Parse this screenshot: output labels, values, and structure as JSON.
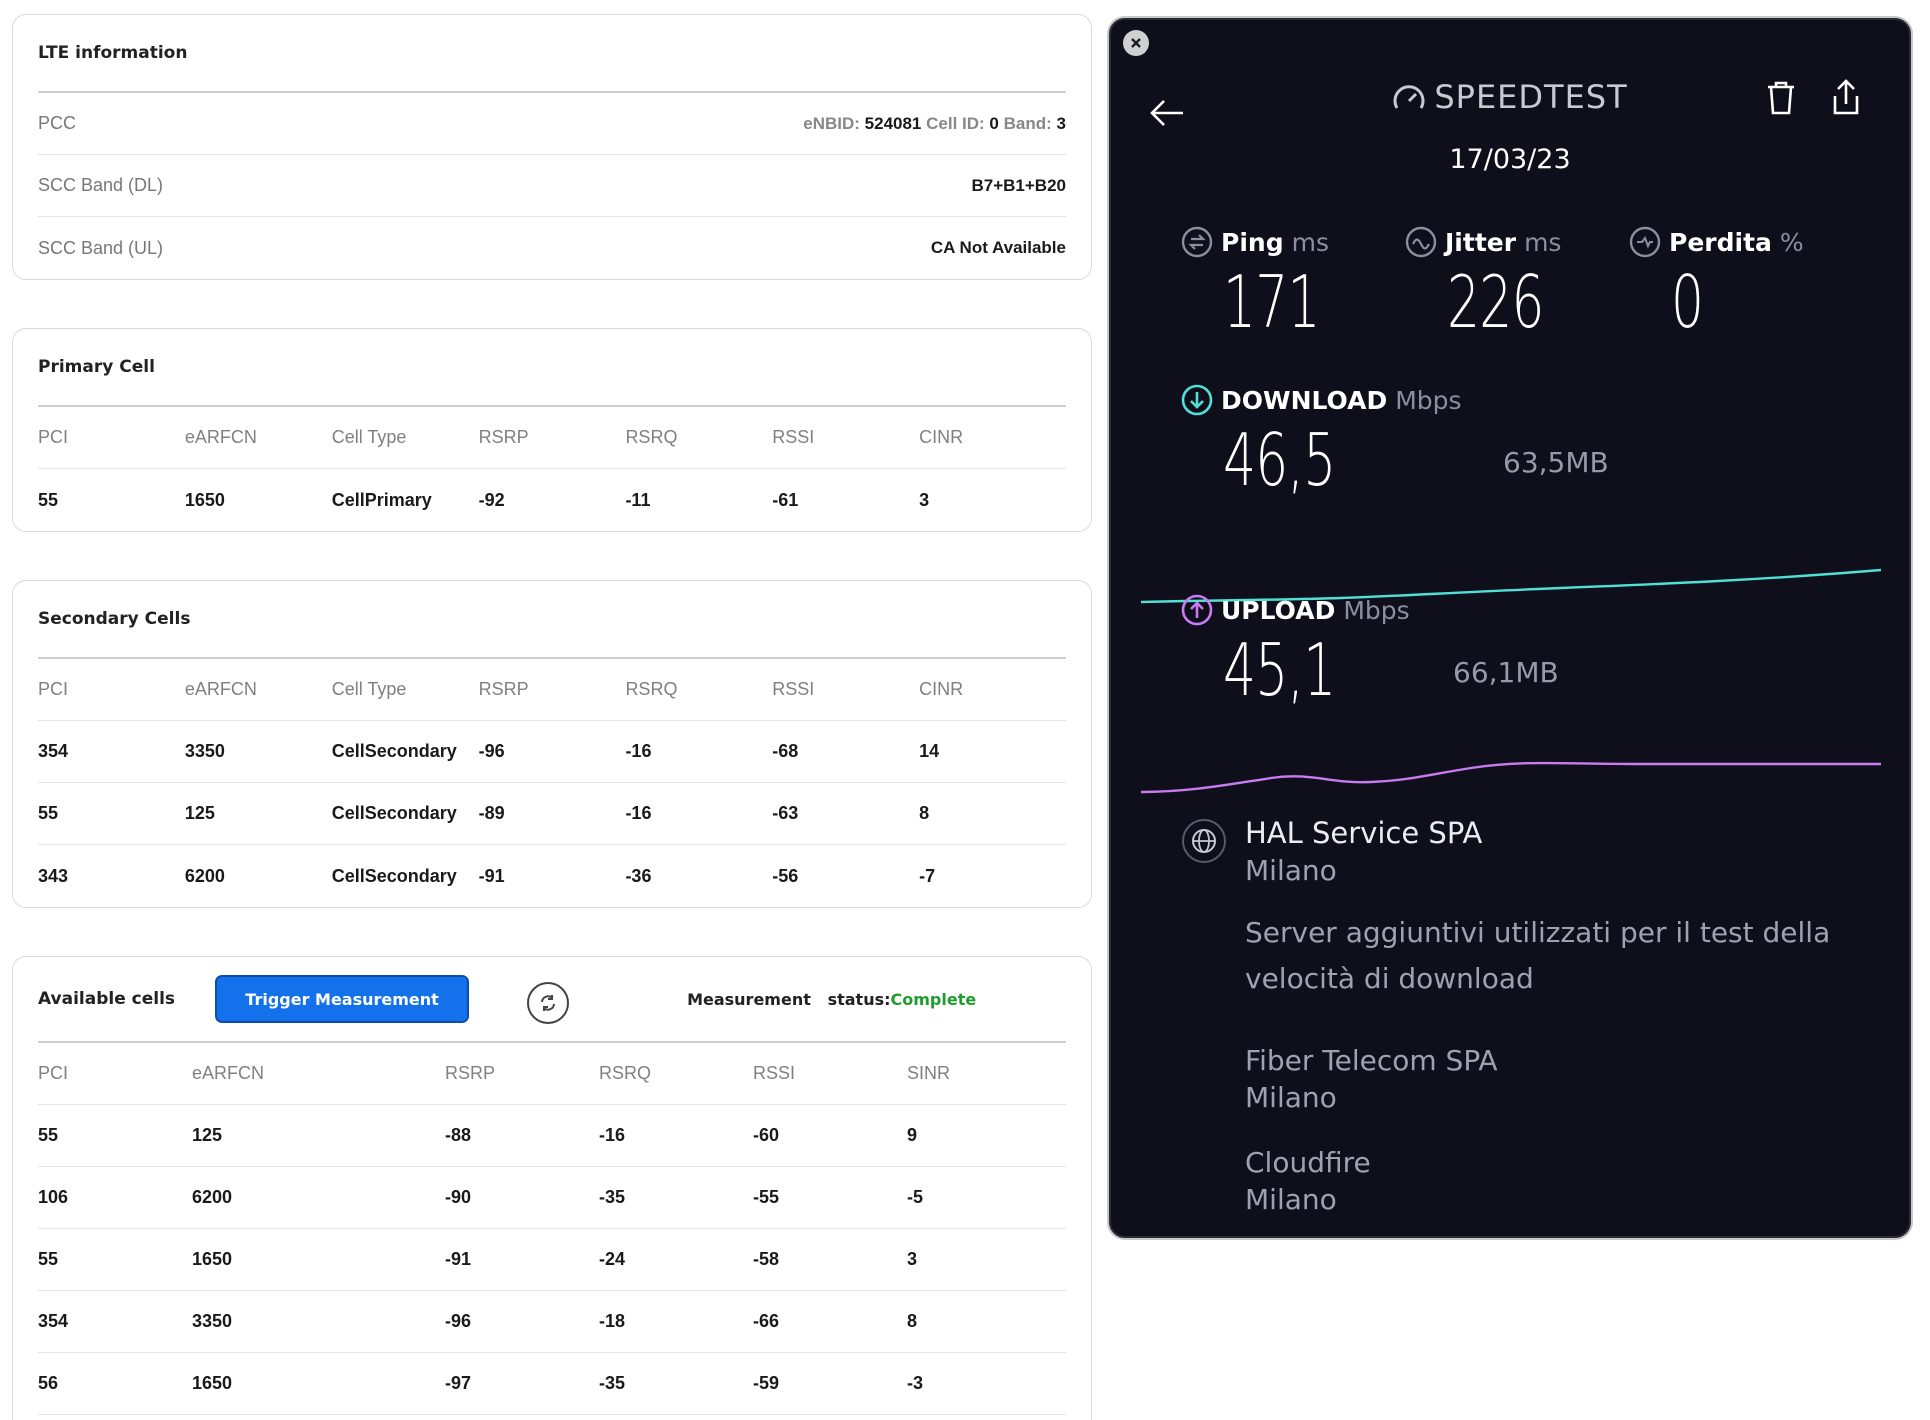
{
  "lte": {
    "title": "LTE information",
    "rows": [
      {
        "label": "PCC"
      },
      {
        "label": "SCC Band (DL)",
        "value": "B7+B1+B20"
      },
      {
        "label": "SCC Band (UL)",
        "value": "CA Not Available"
      }
    ],
    "pcc": {
      "enbid_label": "eNBID:",
      "enbid": "524081",
      "cellid_label": "Cell ID:",
      "cellid": "0",
      "band_label": "Band:",
      "band": "3"
    }
  },
  "primary": {
    "title": "Primary Cell",
    "headers": [
      "PCI",
      "eARFCN",
      "Cell Type",
      "RSRP",
      "RSRQ",
      "RSSI",
      "CINR"
    ],
    "rows": [
      [
        "55",
        "1650",
        "CellPrimary",
        "-92",
        "-11",
        "-61",
        "3"
      ]
    ]
  },
  "secondary": {
    "title": "Secondary Cells",
    "headers": [
      "PCI",
      "eARFCN",
      "Cell Type",
      "RSRP",
      "RSRQ",
      "RSSI",
      "CINR"
    ],
    "rows": [
      [
        "354",
        "3350",
        "CellSecondary",
        "-96",
        "-16",
        "-68",
        "14"
      ],
      [
        "55",
        "125",
        "CellSecondary",
        "-89",
        "-16",
        "-63",
        "8"
      ],
      [
        "343",
        "6200",
        "CellSecondary",
        "-91",
        "-36",
        "-56",
        "-7"
      ]
    ]
  },
  "available": {
    "title": "Available cells",
    "trigger_label": "Trigger Measurement",
    "measurement_label": "Measurement",
    "status_label": "status:",
    "status_value": "Complete",
    "headers": [
      "PCI",
      "eARFCN",
      "RSRP",
      "RSRQ",
      "RSSI",
      "SINR"
    ],
    "rows": [
      [
        "55",
        "125",
        "-88",
        "-16",
        "-60",
        "9"
      ],
      [
        "106",
        "6200",
        "-90",
        "-35",
        "-55",
        "-5"
      ],
      [
        "55",
        "1650",
        "-91",
        "-24",
        "-58",
        "3"
      ],
      [
        "354",
        "3350",
        "-96",
        "-18",
        "-66",
        "8"
      ],
      [
        "56",
        "1650",
        "-97",
        "-35",
        "-59",
        "-3"
      ]
    ]
  },
  "speedtest": {
    "logo": "SPEEDTEST",
    "date": "17/03/23",
    "ping": {
      "label": "Ping",
      "unit": "ms",
      "value": "171"
    },
    "jitter": {
      "label": "Jitter",
      "unit": "ms",
      "value": "226"
    },
    "loss": {
      "label": "Perdita",
      "unit": "%",
      "value": "0"
    },
    "download": {
      "label": "DOWNLOAD",
      "unit": "Mbps",
      "value": "46,5",
      "data": "63,5MB",
      "color": "#4fe0d6"
    },
    "upload": {
      "label": "UPLOAD",
      "unit": "Mbps",
      "value": "45,1",
      "data": "66,1MB",
      "color": "#c97bf2"
    },
    "server": {
      "name": "HAL Service SPA",
      "city": "Milano"
    },
    "note": "Server aggiuntivi utilizzati per il test della velocità di download",
    "extra_servers": [
      {
        "name": "Fiber Telecom SPA",
        "city": "Milano"
      },
      {
        "name": "Cloudfire",
        "city": "Milano"
      }
    ]
  }
}
